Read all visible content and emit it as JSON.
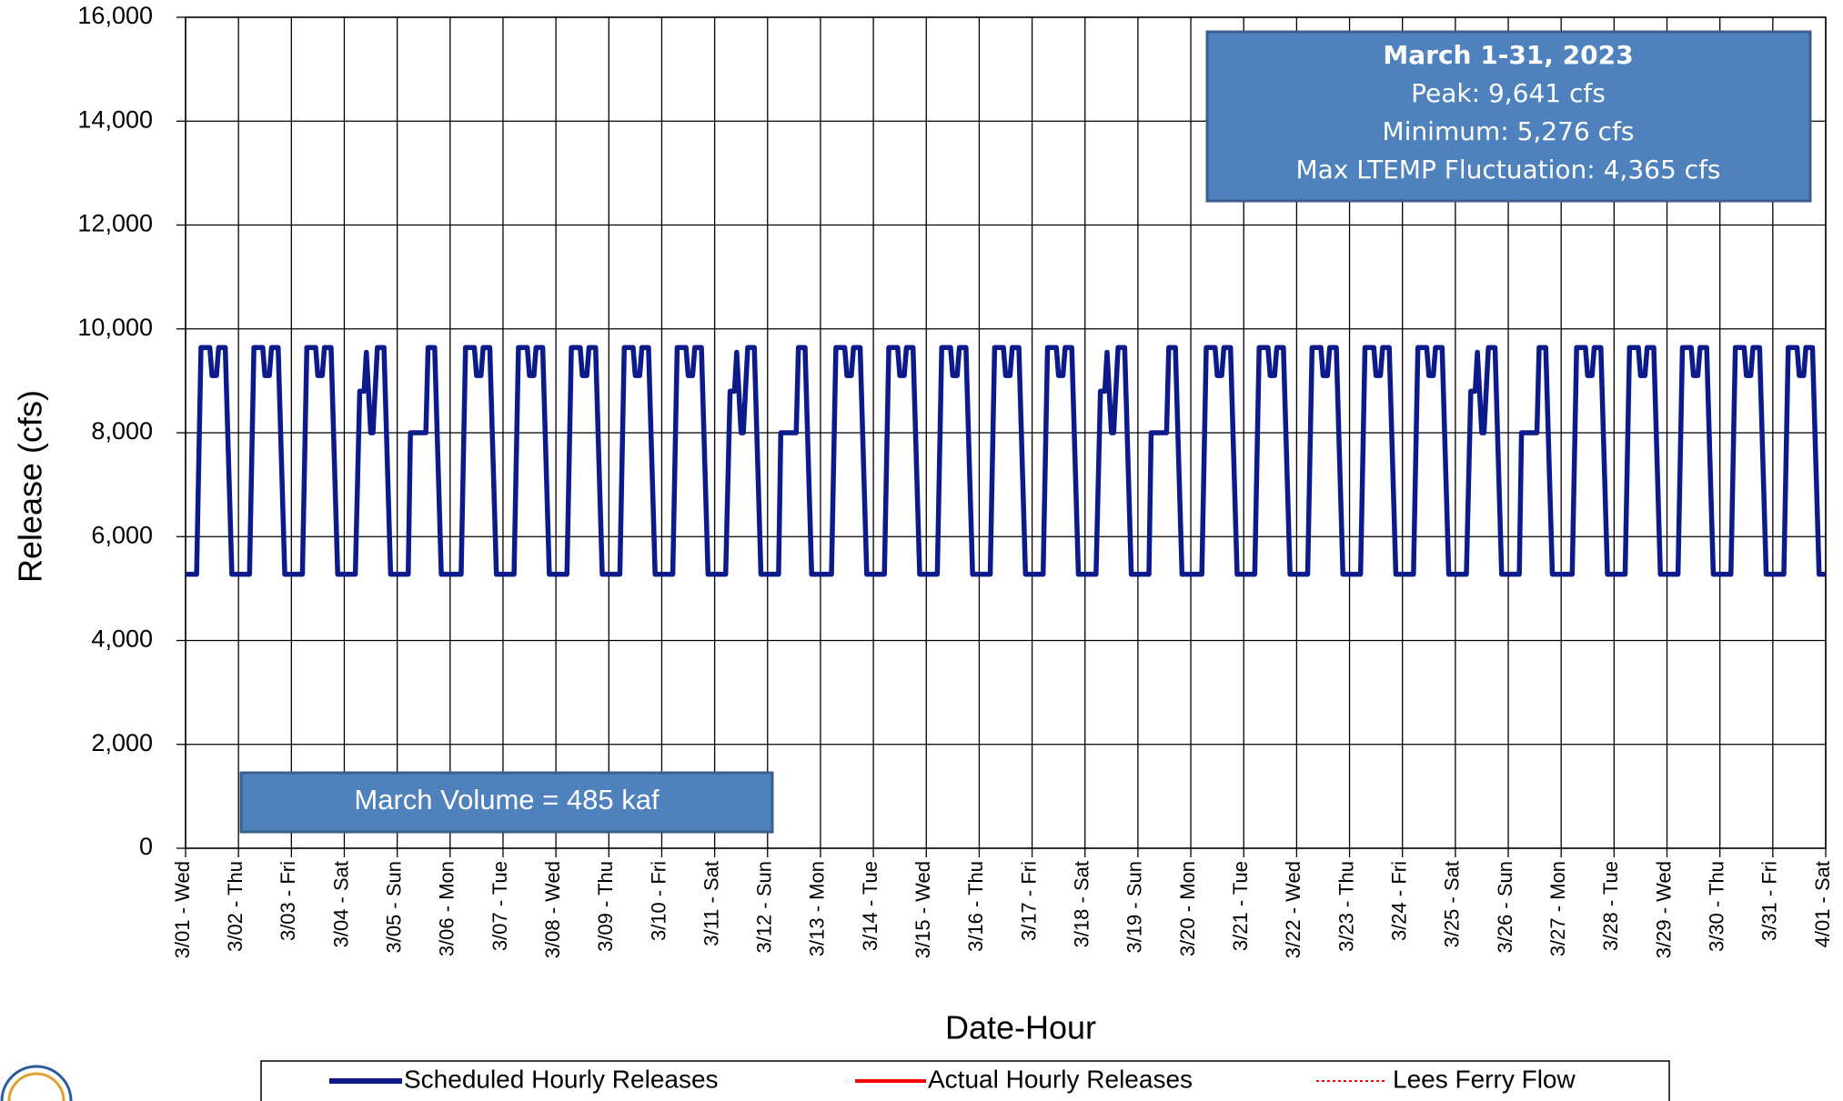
{
  "chart_data": {
    "type": "line",
    "x_label": "Date-Hour",
    "y_label": "Release (cfs)",
    "xlim": [
      0,
      744
    ],
    "ylim": [
      0,
      16000
    ],
    "grid": true,
    "xticks": [
      {
        "value": 0,
        "label": "3/01 - Wed"
      },
      {
        "value": 24,
        "label": "3/02 - Thu"
      },
      {
        "value": 48,
        "label": "3/03 - Fri"
      },
      {
        "value": 72,
        "label": "3/04 - Sat"
      },
      {
        "value": 96,
        "label": "3/05 - Sun"
      },
      {
        "value": 120,
        "label": "3/06 - Mon"
      },
      {
        "value": 144,
        "label": "3/07 - Tue"
      },
      {
        "value": 168,
        "label": "3/08 - Wed"
      },
      {
        "value": 192,
        "label": "3/09 - Thu"
      },
      {
        "value": 216,
        "label": "3/10 - Fri"
      },
      {
        "value": 240,
        "label": "3/11 - Sat"
      },
      {
        "value": 264,
        "label": "3/12 - Sun"
      },
      {
        "value": 288,
        "label": "3/13 - Mon"
      },
      {
        "value": 312,
        "label": "3/14 - Tue"
      },
      {
        "value": 336,
        "label": "3/15 - Wed"
      },
      {
        "value": 360,
        "label": "3/16 - Thu"
      },
      {
        "value": 384,
        "label": "3/17 - Fri"
      },
      {
        "value": 408,
        "label": "3/18 - Sat"
      },
      {
        "value": 432,
        "label": "3/19 - Sun"
      },
      {
        "value": 456,
        "label": "3/20 - Mon"
      },
      {
        "value": 480,
        "label": "3/21 - Tue"
      },
      {
        "value": 504,
        "label": "3/22 - Wed"
      },
      {
        "value": 528,
        "label": "3/23 - Thu"
      },
      {
        "value": 552,
        "label": "3/24 - Fri"
      },
      {
        "value": 576,
        "label": "3/25 - Sat"
      },
      {
        "value": 600,
        "label": "3/26 - Sun"
      },
      {
        "value": 624,
        "label": "3/27 - Mon"
      },
      {
        "value": 648,
        "label": "3/28 - Tue"
      },
      {
        "value": 672,
        "label": "3/29 - Wed"
      },
      {
        "value": 696,
        "label": "3/30 - Thu"
      },
      {
        "value": 720,
        "label": "3/31 - Fri"
      },
      {
        "value": 744,
        "label": "4/01 - Sat"
      }
    ],
    "yticks": [
      0,
      {
        "value": 2000,
        "label": "2,000"
      },
      {
        "value": 4000,
        "label": "4,000"
      },
      {
        "value": 6000,
        "label": "6,000"
      },
      {
        "value": 8000,
        "label": "8,000"
      },
      {
        "value": 10000,
        "label": "10,000"
      },
      {
        "value": 12000,
        "label": "12,000"
      },
      {
        "value": 14000,
        "label": "14,000"
      },
      {
        "value": 16000,
        "label": "16,000"
      }
    ],
    "x": [
      0,
      5,
      7,
      11,
      12,
      14,
      15,
      18,
      21,
      29,
      31,
      35,
      36,
      38,
      39,
      42,
      45,
      53,
      55,
      59,
      60,
      62,
      63,
      66,
      69,
      77,
      79,
      81,
      82,
      84,
      85,
      87,
      90,
      93,
      101,
      102,
      109,
      110,
      113,
      116,
      125,
      127,
      131,
      132,
      134,
      135,
      138,
      141,
      149,
      151,
      155,
      156,
      158,
      159,
      162,
      165,
      173,
      175,
      179,
      180,
      182,
      183,
      186,
      189,
      197,
      199,
      203,
      204,
      206,
      207,
      210,
      213,
      221,
      223,
      227,
      228,
      230,
      231,
      234,
      237,
      245,
      247,
      249,
      250,
      252,
      253,
      255,
      258,
      261,
      269,
      270,
      277,
      278,
      281,
      284,
      293,
      295,
      299,
      300,
      302,
      303,
      306,
      309,
      317,
      319,
      323,
      324,
      326,
      327,
      330,
      333,
      341,
      343,
      347,
      348,
      350,
      351,
      354,
      357,
      365,
      367,
      371,
      372,
      374,
      375,
      378,
      381,
      389,
      391,
      395,
      396,
      398,
      399,
      402,
      405,
      413,
      415,
      417,
      418,
      420,
      421,
      423,
      426,
      429,
      437,
      438,
      445,
      446,
      449,
      452,
      461,
      463,
      467,
      468,
      470,
      471,
      474,
      477,
      485,
      487,
      491,
      492,
      494,
      495,
      498,
      501,
      509,
      511,
      515,
      516,
      518,
      519,
      522,
      525,
      533,
      535,
      539,
      540,
      542,
      543,
      546,
      549,
      557,
      559,
      563,
      564,
      566,
      567,
      570,
      573,
      581,
      583,
      585,
      586,
      588,
      589,
      591,
      594,
      597,
      605,
      606,
      613,
      614,
      617,
      620,
      629,
      631,
      635,
      636,
      638,
      639,
      642,
      645,
      653,
      655,
      659,
      660,
      662,
      663,
      666,
      669,
      677,
      679,
      683,
      684,
      686,
      687,
      690,
      693,
      701,
      703,
      707,
      708,
      710,
      711,
      714,
      717,
      725,
      727,
      731,
      732,
      734,
      735,
      738,
      741,
      744
    ],
    "series": [
      {
        "name": "Scheduled Hourly Releases",
        "color": "#0c1a8a",
        "values": [
          5276,
          5276,
          9641,
          9641,
          9100,
          9100,
          9641,
          9641,
          5276,
          5276,
          9641,
          9641,
          9100,
          9100,
          9641,
          9641,
          5276,
          5276,
          9641,
          9641,
          9100,
          9100,
          9641,
          9641,
          5276,
          5276,
          8800,
          8800,
          9550,
          8000,
          8000,
          9641,
          9641,
          5276,
          5276,
          8000,
          8000,
          9641,
          9641,
          5276,
          5276,
          9641,
          9641,
          9100,
          9100,
          9641,
          9641,
          5276,
          5276,
          9641,
          9641,
          9100,
          9100,
          9641,
          9641,
          5276,
          5276,
          9641,
          9641,
          9100,
          9100,
          9641,
          9641,
          5276,
          5276,
          9641,
          9641,
          9100,
          9100,
          9641,
          9641,
          5276,
          5276,
          9641,
          9641,
          9100,
          9100,
          9641,
          9641,
          5276,
          5276,
          8800,
          8800,
          9550,
          8000,
          8000,
          9641,
          9641,
          5276,
          5276,
          8000,
          8000,
          9641,
          9641,
          5276,
          5276,
          9641,
          9641,
          9100,
          9100,
          9641,
          9641,
          5276,
          5276,
          9641,
          9641,
          9100,
          9100,
          9641,
          9641,
          5276,
          5276,
          9641,
          9641,
          9100,
          9100,
          9641,
          9641,
          5276,
          5276,
          9641,
          9641,
          9100,
          9100,
          9641,
          9641,
          5276,
          5276,
          9641,
          9641,
          9100,
          9100,
          9641,
          9641,
          5276,
          5276,
          8800,
          8800,
          9550,
          8000,
          8000,
          9641,
          9641,
          5276,
          5276,
          8000,
          8000,
          9641,
          9641,
          5276,
          5276,
          9641,
          9641,
          9100,
          9100,
          9641,
          9641,
          5276,
          5276,
          9641,
          9641,
          9100,
          9100,
          9641,
          9641,
          5276,
          5276,
          9641,
          9641,
          9100,
          9100,
          9641,
          9641,
          5276,
          5276,
          9641,
          9641,
          9100,
          9100,
          9641,
          9641,
          5276,
          5276,
          9641,
          9641,
          9100,
          9100,
          9641,
          9641,
          5276,
          5276,
          8800,
          8800,
          9550,
          8000,
          8000,
          9641,
          9641,
          5276,
          5276,
          8000,
          8000,
          9641,
          9641,
          5276,
          5276,
          9641,
          9641,
          9100,
          9100,
          9641,
          9641,
          5276,
          5276,
          9641,
          9641,
          9100,
          9100,
          9641,
          9641,
          5276,
          5276,
          9641,
          9641,
          9100,
          9100,
          9641,
          9641,
          5276,
          5276,
          9641,
          9641,
          9100,
          9100,
          9641,
          9641,
          5276,
          5276,
          9641,
          9641,
          9100,
          9100,
          9641,
          9641,
          5276,
          5276
        ]
      }
    ],
    "legend_entries": [
      {
        "name": "Actual Hourly Releases",
        "color": "#ff0000",
        "dashed": false
      },
      {
        "name": "Lees Ferry Flow",
        "color": "#ff0000",
        "dashed": true
      }
    ],
    "summary_box": [
      "March 1-31, 2023",
      "Peak: 9,641 cfs",
      "Minimum: 5,276 cfs",
      "Max LTEMP Fluctuation: 4,365 cfs"
    ],
    "volume_note": "March Volume = 485 kaf"
  }
}
